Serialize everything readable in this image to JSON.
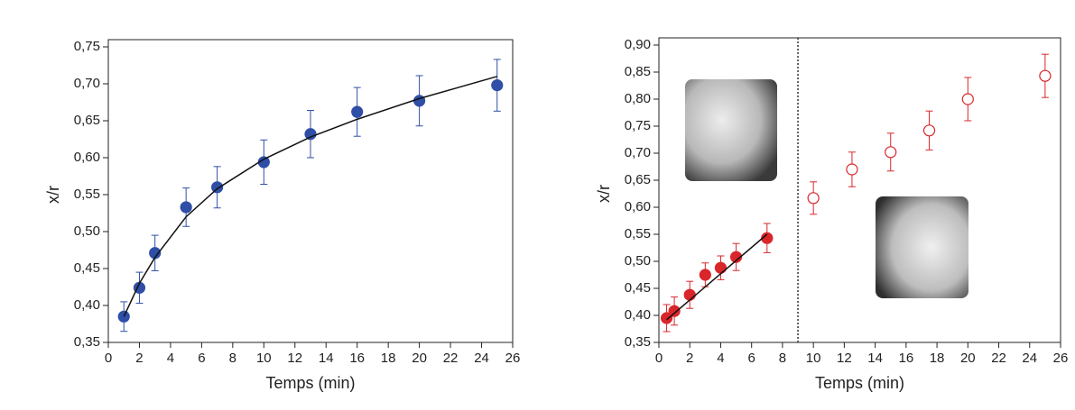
{
  "chart_data": [
    {
      "type": "scatter",
      "x_label": "Temps (min)",
      "y_label": "x/r",
      "xlim": [
        0,
        26
      ],
      "xticks": [
        0,
        2,
        4,
        6,
        8,
        10,
        12,
        14,
        16,
        18,
        20,
        22,
        24,
        26
      ],
      "ylim": [
        0.35,
        0.75
      ],
      "yticks": [
        {
          "value": 0.35,
          "label": "0,35"
        },
        {
          "value": 0.4,
          "label": "0,40"
        },
        {
          "value": 0.45,
          "label": "0,45"
        },
        {
          "value": 0.5,
          "label": "0,50"
        },
        {
          "value": 0.55,
          "label": "0,55"
        },
        {
          "value": 0.6,
          "label": "0,60"
        },
        {
          "value": 0.65,
          "label": "0,65"
        },
        {
          "value": 0.7,
          "label": "0,70"
        },
        {
          "value": 0.75,
          "label": "0,75"
        }
      ],
      "series": [
        {
          "color": "#2f4fa6",
          "marker": "filled",
          "x": [
            1,
            2,
            3,
            5,
            7,
            10,
            13,
            16,
            20,
            25
          ],
          "values": [
            0.385,
            0.424,
            0.471,
            0.533,
            0.56,
            0.594,
            0.632,
            0.662,
            0.677,
            0.698
          ],
          "errors": [
            0.02,
            0.021,
            0.024,
            0.026,
            0.028,
            0.03,
            0.032,
            0.033,
            0.034,
            0.035
          ]
        },
        {
          "color": "#111111",
          "marker": "none",
          "x": [
            1,
            2,
            3,
            5,
            7,
            10,
            13,
            16,
            20,
            25
          ],
          "values": [
            0.385,
            0.43,
            0.465,
            0.52,
            0.558,
            0.598,
            0.628,
            0.652,
            0.68,
            0.71
          ]
        }
      ]
    },
    {
      "type": "scatter",
      "x_label": "Temps (min)",
      "y_label": "x/r",
      "xlim": [
        0,
        26
      ],
      "xticks": [
        0,
        2,
        4,
        6,
        8,
        10,
        12,
        14,
        16,
        18,
        20,
        22,
        24,
        26
      ],
      "ylim": [
        0.35,
        0.9
      ],
      "yticks": [
        {
          "value": 0.35,
          "label": "0,35"
        },
        {
          "value": 0.4,
          "label": "0,40"
        },
        {
          "value": 0.45,
          "label": "0,45"
        },
        {
          "value": 0.5,
          "label": "0,50"
        },
        {
          "value": 0.55,
          "label": "0,55"
        },
        {
          "value": 0.6,
          "label": "0,60"
        },
        {
          "value": 0.65,
          "label": "0,65"
        },
        {
          "value": 0.7,
          "label": "0,70"
        },
        {
          "value": 0.75,
          "label": "0,75"
        },
        {
          "value": 0.8,
          "label": "0,80"
        },
        {
          "value": 0.85,
          "label": "0,85"
        },
        {
          "value": 0.9,
          "label": "0,90"
        }
      ],
      "vlines": [
        9
      ],
      "series": [
        {
          "color": "#d9262b",
          "marker": "filled",
          "x": [
            0.5,
            1,
            2,
            3,
            4,
            5,
            7
          ],
          "values": [
            0.395,
            0.408,
            0.438,
            0.475,
            0.488,
            0.508,
            0.543
          ],
          "errors": [
            0.025,
            0.026,
            0.025,
            0.022,
            0.022,
            0.025,
            0.027
          ]
        },
        {
          "color": "#111111",
          "marker": "none",
          "x": [
            0.5,
            7
          ],
          "values": [
            0.392,
            0.55
          ]
        },
        {
          "color": "#d9262b",
          "marker": "open",
          "x": [
            10,
            12.5,
            15,
            17.5,
            20,
            25
          ],
          "values": [
            0.617,
            0.67,
            0.702,
            0.742,
            0.8,
            0.843
          ],
          "errors": [
            0.03,
            0.032,
            0.035,
            0.036,
            0.04,
            0.04
          ]
        }
      ]
    }
  ]
}
